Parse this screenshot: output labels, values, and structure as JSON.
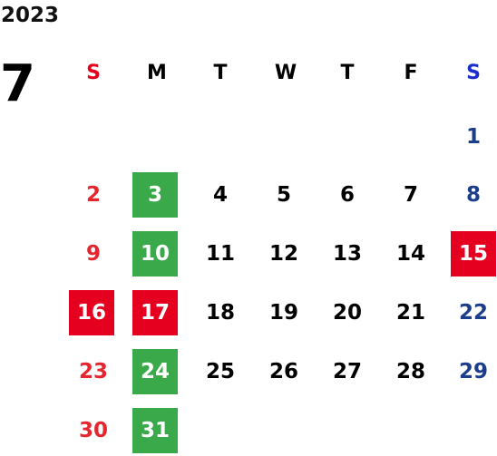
{
  "calendar": {
    "year": "2023",
    "month": "7",
    "weekdays": [
      "S",
      "M",
      "T",
      "W",
      "T",
      "F",
      "S"
    ],
    "weeks": [
      [
        "",
        "",
        "",
        "",
        "",
        "",
        "1"
      ],
      [
        "2",
        "3",
        "4",
        "5",
        "6",
        "7",
        "8"
      ],
      [
        "9",
        "10",
        "11",
        "12",
        "13",
        "14",
        "15"
      ],
      [
        "16",
        "17",
        "18",
        "19",
        "20",
        "21",
        "22"
      ],
      [
        "23",
        "24",
        "25",
        "26",
        "27",
        "28",
        "29"
      ],
      [
        "30",
        "31",
        "",
        "",
        "",
        "",
        ""
      ]
    ]
  },
  "highlight_colors": {
    "green": "#3aa94a",
    "red": "#e5001f",
    "sunday_text": "#e5262e",
    "saturday_text": "#1c3e8a"
  }
}
